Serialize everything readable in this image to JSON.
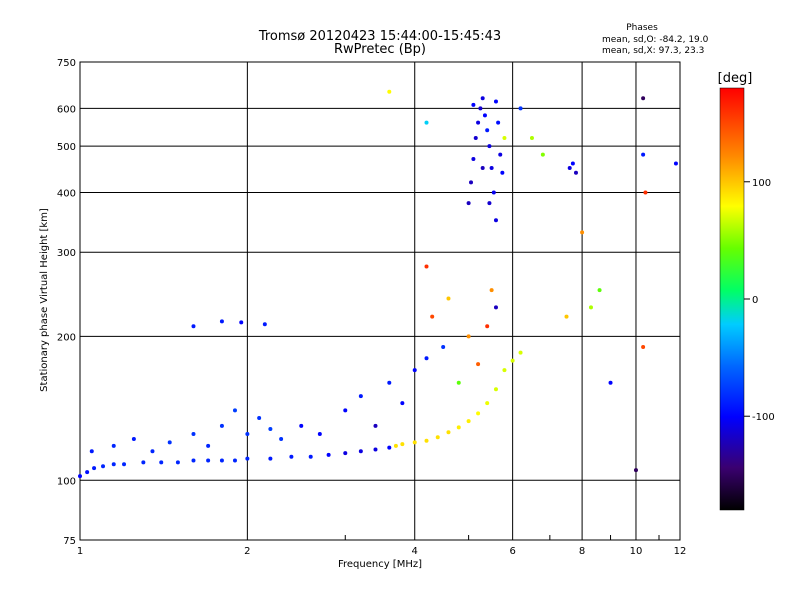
{
  "chart_data": {
    "type": "scatter",
    "title": "Tromsø 20120423 15:44:00-15:45:43",
    "subtitle": "RwPretec (Bp)",
    "xlabel": "Frequency [MHz]",
    "ylabel": "Stationary phase Virtual Height [km]",
    "x_scale": "log",
    "y_scale": "log",
    "xlim": [
      1,
      12
    ],
    "ylim": [
      75,
      750
    ],
    "x_ticks": [
      1,
      2,
      4,
      6,
      8,
      10,
      12
    ],
    "y_ticks": [
      75,
      100,
      200,
      300,
      400,
      500,
      600,
      750
    ],
    "grid": true,
    "phases_info": {
      "title": "Phases",
      "line_o": "mean, sd,O: -84.2, 19.0",
      "line_x": "mean, sd,X:  97.3, 23.3"
    },
    "colorbar": {
      "label": "[deg]",
      "ticks": [
        100,
        0,
        -100
      ],
      "range": [
        -180,
        180
      ],
      "colormap": "rainbow"
    },
    "series": [
      {
        "points": [
          [
            1.0,
            102,
            -100
          ],
          [
            1.03,
            104,
            -95
          ],
          [
            1.06,
            106,
            -90
          ],
          [
            1.1,
            107,
            -85
          ],
          [
            1.15,
            108,
            -85
          ],
          [
            1.2,
            108,
            -85
          ],
          [
            1.3,
            109,
            -85
          ],
          [
            1.4,
            109,
            -85
          ],
          [
            1.5,
            109,
            -85
          ],
          [
            1.6,
            110,
            -85
          ],
          [
            1.7,
            110,
            -85
          ],
          [
            1.8,
            110,
            -85
          ],
          [
            1.9,
            110,
            -85
          ],
          [
            2.0,
            111,
            -85
          ],
          [
            2.2,
            111,
            -90
          ],
          [
            2.4,
            112,
            -90
          ],
          [
            2.6,
            112,
            -90
          ],
          [
            2.8,
            113,
            -100
          ],
          [
            3.0,
            114,
            -110
          ],
          [
            3.2,
            115,
            -110
          ],
          [
            3.4,
            116,
            -110
          ],
          [
            3.6,
            117,
            -100
          ],
          [
            3.7,
            118,
            90
          ],
          [
            3.8,
            119,
            90
          ],
          [
            4.0,
            120,
            90
          ],
          [
            4.2,
            121,
            90
          ],
          [
            4.4,
            123,
            90
          ],
          [
            4.6,
            126,
            90
          ],
          [
            4.8,
            129,
            85
          ],
          [
            5.0,
            133,
            85
          ],
          [
            5.2,
            138,
            80
          ],
          [
            5.4,
            145,
            75
          ],
          [
            5.6,
            155,
            70
          ],
          [
            5.8,
            170,
            70
          ],
          [
            6.0,
            178,
            70
          ],
          [
            6.2,
            185,
            70
          ]
        ]
      },
      {
        "points": [
          [
            1.05,
            115,
            -90
          ],
          [
            1.15,
            118,
            -85
          ],
          [
            1.25,
            122,
            -90
          ],
          [
            1.35,
            115,
            -85
          ],
          [
            1.45,
            120,
            -80
          ],
          [
            1.6,
            125,
            -80
          ],
          [
            1.7,
            118,
            -85
          ],
          [
            1.8,
            130,
            -80
          ],
          [
            1.9,
            140,
            -75
          ],
          [
            2.0,
            125,
            -80
          ],
          [
            2.1,
            135,
            -80
          ],
          [
            2.2,
            128,
            -75
          ],
          [
            2.3,
            122,
            -80
          ],
          [
            2.5,
            130,
            -100
          ],
          [
            2.7,
            125,
            -100
          ],
          [
            3.0,
            140,
            -100
          ],
          [
            3.2,
            150,
            -90
          ],
          [
            3.4,
            130,
            -120
          ],
          [
            3.6,
            160,
            -90
          ],
          [
            3.8,
            145,
            -100
          ],
          [
            4.0,
            170,
            -100
          ],
          [
            4.2,
            180,
            -90
          ],
          [
            4.5,
            190,
            -80
          ],
          [
            4.8,
            160,
            40
          ],
          [
            5.0,
            200,
            120
          ],
          [
            5.2,
            175,
            140
          ],
          [
            5.4,
            210,
            160
          ],
          [
            5.6,
            230,
            -120
          ],
          [
            1.6,
            210,
            -90
          ],
          [
            1.8,
            215,
            -90
          ],
          [
            1.95,
            214,
            -100
          ],
          [
            2.15,
            212,
            -90
          ],
          [
            4.2,
            280,
            160
          ],
          [
            4.3,
            220,
            150
          ],
          [
            4.6,
            240,
            100
          ],
          [
            5.5,
            250,
            120
          ],
          [
            7.5,
            220,
            100
          ],
          [
            8.3,
            230,
            60
          ],
          [
            8.6,
            250,
            40
          ],
          [
            9.0,
            160,
            -100
          ],
          [
            10.0,
            105,
            -150
          ],
          [
            10.3,
            190,
            150
          ]
        ]
      },
      {
        "points": [
          [
            5.0,
            380,
            -120
          ],
          [
            5.05,
            420,
            -120
          ],
          [
            5.1,
            470,
            -110
          ],
          [
            5.15,
            520,
            -115
          ],
          [
            5.2,
            560,
            -110
          ],
          [
            5.25,
            600,
            -115
          ],
          [
            5.3,
            630,
            -110
          ],
          [
            5.35,
            580,
            -100
          ],
          [
            5.4,
            540,
            -90
          ],
          [
            5.45,
            500,
            -110
          ],
          [
            5.5,
            450,
            -110
          ],
          [
            5.55,
            400,
            -105
          ],
          [
            5.6,
            620,
            -100
          ],
          [
            5.65,
            560,
            -95
          ],
          [
            5.7,
            480,
            -110
          ],
          [
            5.75,
            440,
            -100
          ],
          [
            5.1,
            610,
            -100
          ],
          [
            5.3,
            450,
            -120
          ],
          [
            5.45,
            380,
            -115
          ],
          [
            5.6,
            350,
            -110
          ],
          [
            5.8,
            520,
            70
          ],
          [
            6.2,
            600,
            -80
          ],
          [
            6.5,
            520,
            60
          ],
          [
            6.8,
            480,
            50
          ],
          [
            7.6,
            450,
            -110
          ],
          [
            7.8,
            440,
            -120
          ],
          [
            7.7,
            460,
            -100
          ],
          [
            8.0,
            330,
            120
          ],
          [
            10.3,
            630,
            -150
          ],
          [
            10.3,
            480,
            -90
          ],
          [
            10.4,
            400,
            160
          ],
          [
            11.8,
            460,
            -100
          ],
          [
            4.2,
            560,
            -20
          ],
          [
            3.6,
            650,
            80
          ]
        ]
      }
    ]
  }
}
